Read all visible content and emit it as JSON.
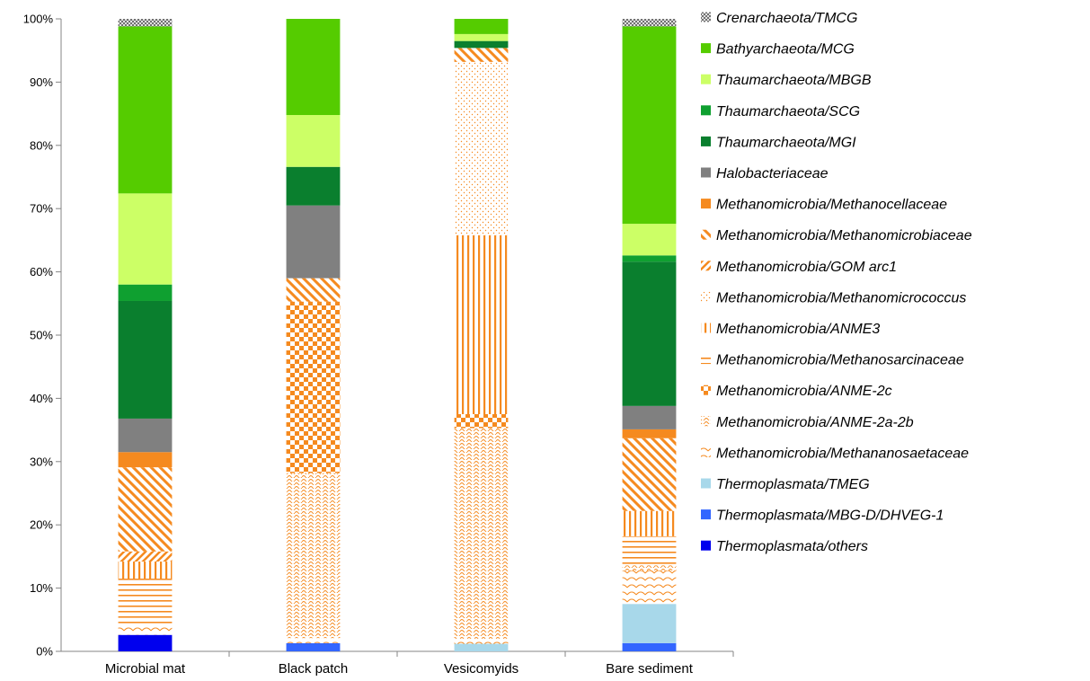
{
  "chart_data": {
    "type": "bar",
    "stacked": true,
    "percent": true,
    "categories": [
      "Microbial mat",
      "Black patch",
      "Vesicomyids",
      "Bare sediment"
    ],
    "ylim": [
      0,
      100
    ],
    "yticks": [
      "0%",
      "10%",
      "20%",
      "30%",
      "40%",
      "50%",
      "60%",
      "70%",
      "80%",
      "90%",
      "100%"
    ],
    "grid": false,
    "legend_position": "right",
    "series": [
      {
        "name": "Thermoplasmata/others",
        "color": "#0000ee",
        "pattern": "solid",
        "values": [
          2.6,
          0,
          0,
          0
        ]
      },
      {
        "name": "Thermoplasmata/MBG-D/DHVEG-1",
        "color": "#3366ff",
        "pattern": "solid",
        "values": [
          0,
          1.3,
          0,
          1.3
        ]
      },
      {
        "name": "Thermoplasmata/TMEG",
        "color": "#a8d8ea",
        "pattern": "solid",
        "values": [
          0,
          0,
          1.2,
          6.2
        ]
      },
      {
        "name": "Methanomicrobia/Methananosaetaceae",
        "color": "#f58a1f",
        "pattern": "scallop",
        "values": [
          1.4,
          0.8,
          0.8,
          5.3
        ]
      },
      {
        "name": "Methanomicrobia/ANME-2a-2b",
        "color": "#f58a1f",
        "pattern": "wave",
        "values": [
          0,
          26.1,
          33.3,
          0.8
        ]
      },
      {
        "name": "Methanomicrobia/ANME-2c",
        "color": "#f58a1f",
        "pattern": "checker",
        "values": [
          0,
          27.1,
          2.2,
          0
        ]
      },
      {
        "name": "Methanomicrobia/Methanosarcinaceae",
        "color": "#f58a1f",
        "pattern": "hlines",
        "values": [
          7.5,
          0,
          0,
          4.6
        ]
      },
      {
        "name": "Methanomicrobia/ANME3",
        "color": "#f58a1f",
        "pattern": "vlines",
        "values": [
          2.7,
          0,
          28.3,
          4.0
        ]
      },
      {
        "name": "Methanomicrobia/Methanomicrococcus",
        "color": "#f58a1f",
        "pattern": "dots",
        "values": [
          0,
          0,
          27.4,
          0
        ]
      },
      {
        "name": "Methanomicrobia/GOM arc1",
        "color": "#f58a1f",
        "pattern": "dup",
        "values": [
          1.6,
          0,
          0,
          0
        ]
      },
      {
        "name": "Methanomicrobia/Methanomicrobiaceae",
        "color": "#f58a1f",
        "pattern": "ddown",
        "values": [
          13.3,
          3.7,
          2.2,
          11.5
        ]
      },
      {
        "name": "Methanomicrobia/Methanocellaceae",
        "color": "#f58a1f",
        "pattern": "solid",
        "values": [
          2.4,
          0,
          0,
          1.4
        ]
      },
      {
        "name": "Halobacteriaceae",
        "color": "#808080",
        "pattern": "solid",
        "values": [
          5.3,
          11.5,
          0,
          3.7
        ]
      },
      {
        "name": "Thaumarchaeota/MGI",
        "color": "#0a7f2e",
        "pattern": "solid",
        "values": [
          18.6,
          6.1,
          1.1,
          22.8
        ]
      },
      {
        "name": "Thaumarchaeota/SCG",
        "color": "#0fa030",
        "pattern": "solid",
        "values": [
          2.6,
          0,
          0,
          1.0
        ]
      },
      {
        "name": "Thaumarchaeota/MBGB",
        "color": "#ccff66",
        "pattern": "solid",
        "values": [
          14.4,
          8.2,
          1.1,
          5.0
        ]
      },
      {
        "name": "Bathyarchaeota/MCG",
        "color": "#55cc00",
        "pattern": "solid",
        "values": [
          26.4,
          15.2,
          2.4,
          31.2
        ]
      },
      {
        "name": "Crenarchaeota/TMCG",
        "color": "#555555",
        "pattern": "cross",
        "values": [
          1.2,
          0,
          0,
          1.2
        ]
      }
    ],
    "legend_order": [
      "Crenarchaeota/TMCG",
      "Bathyarchaeota/MCG",
      "Thaumarchaeota/MBGB",
      "Thaumarchaeota/SCG",
      "Thaumarchaeota/MGI",
      "Halobacteriaceae",
      "Methanomicrobia/Methanocellaceae",
      "Methanomicrobia/Methanomicrobiaceae",
      "Methanomicrobia/GOM arc1",
      "Methanomicrobia/Methanomicrococcus",
      "Methanomicrobia/ANME3",
      "Methanomicrobia/Methanosarcinaceae",
      "Methanomicrobia/ANME-2c",
      "Methanomicrobia/ANME-2a-2b",
      "Methanomicrobia/Methananosaetaceae",
      "Thermoplasmata/TMEG",
      "Thermoplasmata/MBG-D/DHVEG-1",
      "Thermoplasmata/others"
    ]
  }
}
